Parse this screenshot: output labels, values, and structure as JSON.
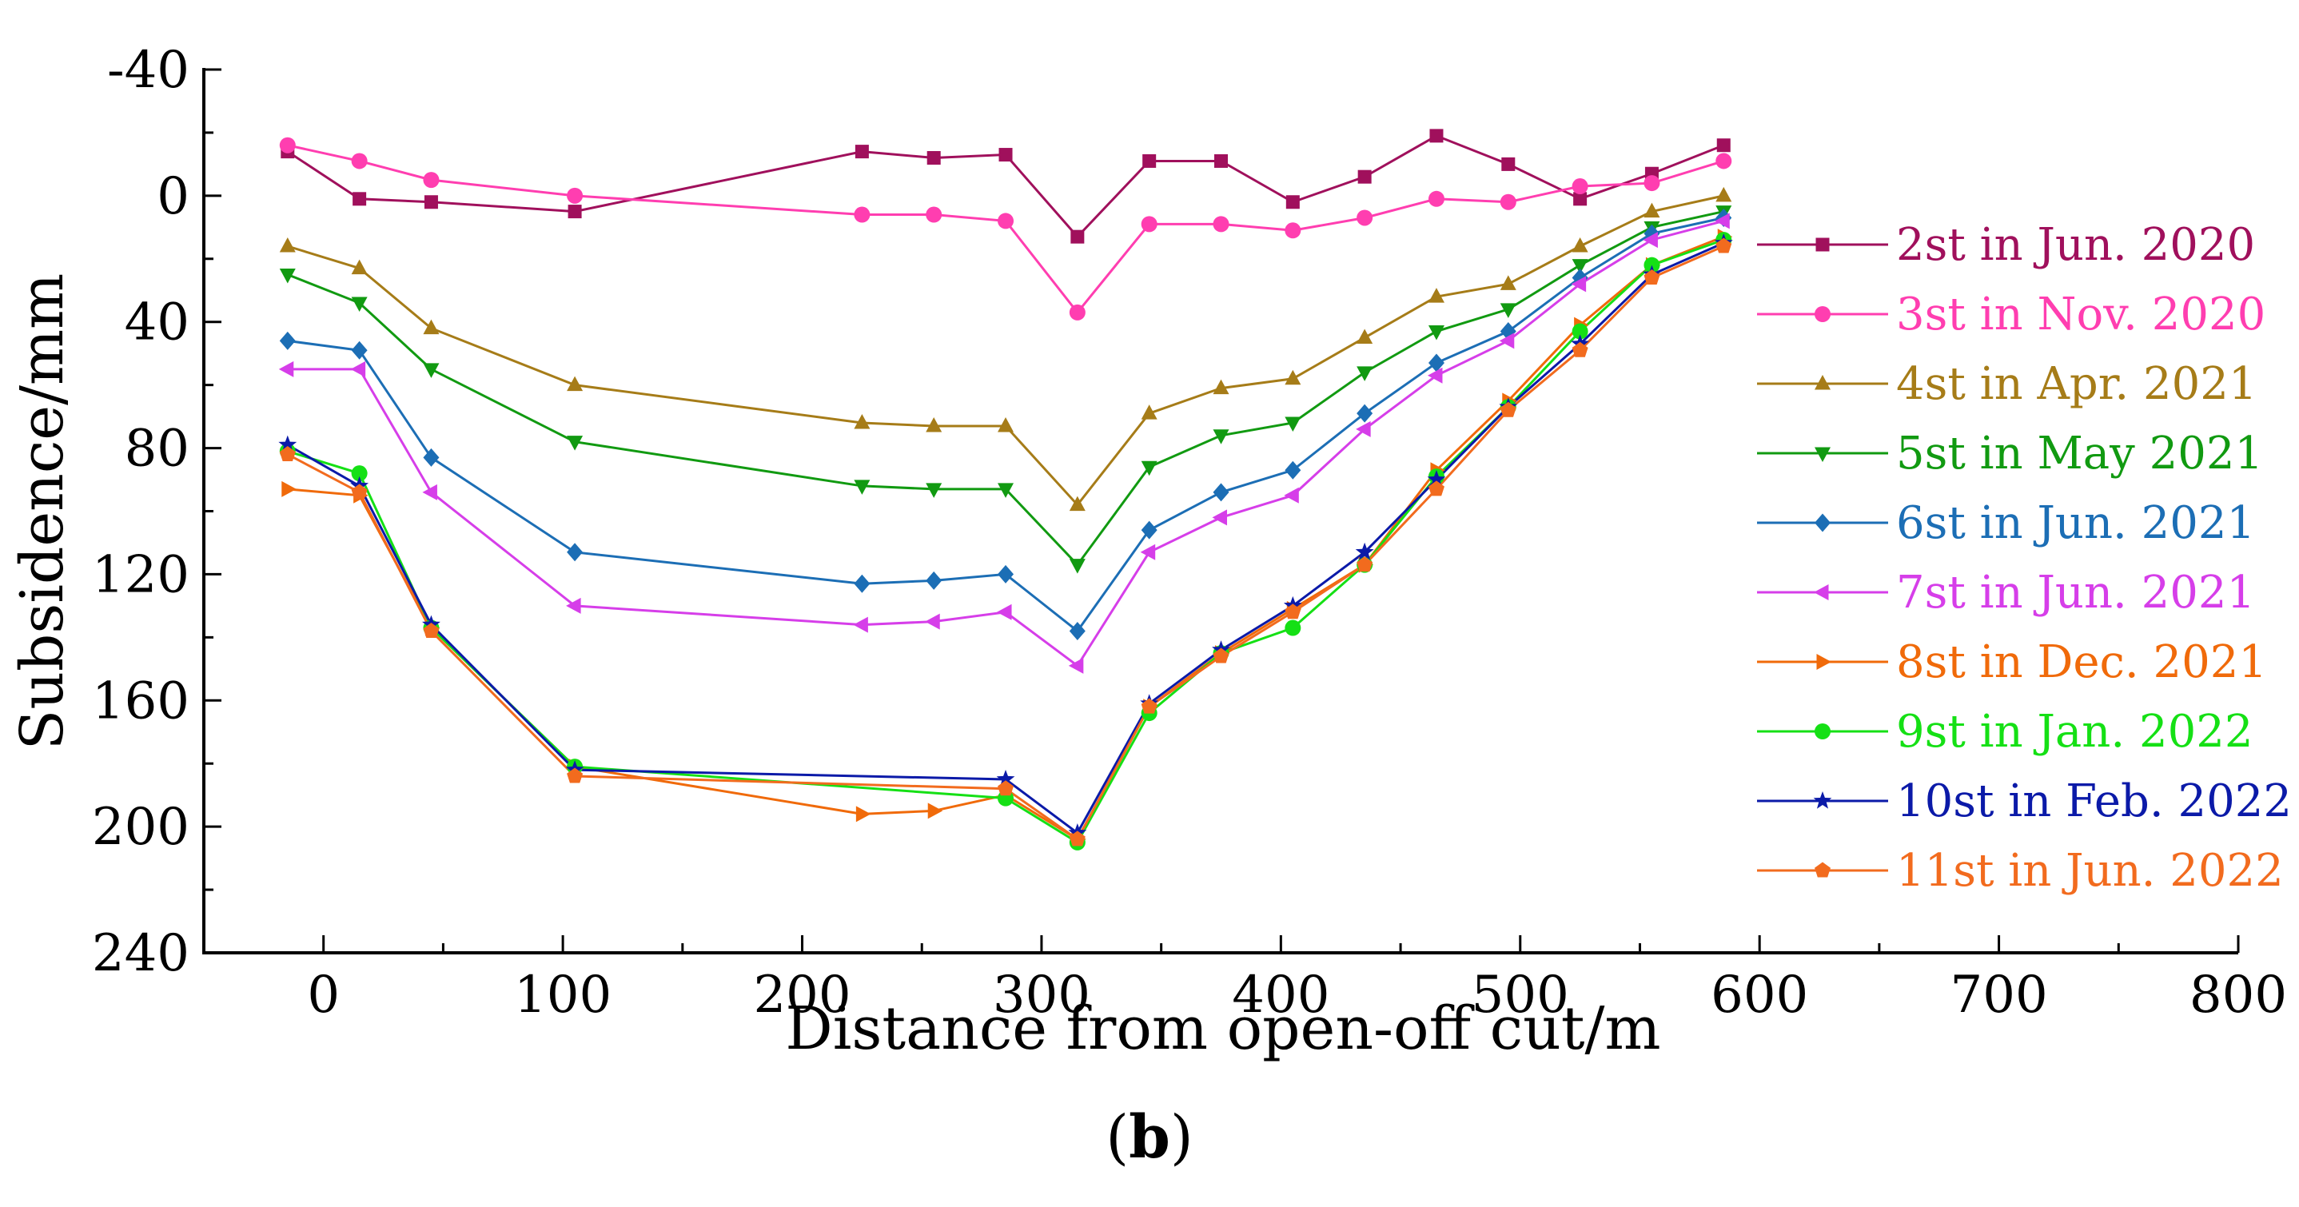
{
  "chart_data": {
    "type": "line",
    "xlabel": "Distance from open-off cut/m",
    "ylabel": "Subsidence/mm",
    "caption_letter": "b",
    "xlim": [
      -50,
      800
    ],
    "ylim": [
      -40,
      240
    ],
    "y_inverted": true,
    "xticks": [
      0,
      100,
      200,
      300,
      400,
      500,
      600,
      700,
      800
    ],
    "yticks": [
      -40,
      0,
      40,
      80,
      120,
      160,
      200,
      240
    ],
    "xtick_labels": [
      "0",
      "100",
      "200",
      "300",
      "400",
      "500",
      "600",
      "700",
      "800"
    ],
    "ytick_labels": [
      "-40",
      "0",
      "40",
      "80",
      "120",
      "160",
      "200",
      "240"
    ],
    "legend_position": "right",
    "series": [
      {
        "name": "2st in Jun. 2020",
        "color": "#a0105c",
        "marker": "square",
        "x": [
          -15,
          15,
          45,
          105,
          225,
          255,
          285,
          315,
          345,
          375,
          405,
          435,
          465,
          495,
          525,
          555,
          585
        ],
        "y": [
          -14,
          1,
          2,
          5,
          -14,
          -12,
          -13,
          13,
          -11,
          -11,
          2,
          -6,
          -19,
          -10,
          1,
          -7,
          -16
        ]
      },
      {
        "name": "3st in Nov. 2020",
        "color": "#ff3eb0",
        "marker": "circle",
        "x": [
          -15,
          15,
          45,
          105,
          225,
          255,
          285,
          315,
          345,
          375,
          405,
          435,
          465,
          495,
          525,
          555,
          585
        ],
        "y": [
          -16,
          -11,
          -5,
          0,
          6,
          6,
          8,
          37,
          9,
          9,
          11,
          7,
          1,
          2,
          -3,
          -4,
          -11
        ]
      },
      {
        "name": "4st in Apr. 2021",
        "color": "#a67c18",
        "marker": "triangle-up",
        "x": [
          -15,
          15,
          45,
          105,
          225,
          255,
          285,
          315,
          345,
          375,
          405,
          435,
          465,
          495,
          525,
          555,
          585
        ],
        "y": [
          16,
          23,
          42,
          60,
          72,
          73,
          73,
          98,
          69,
          61,
          58,
          45,
          32,
          28,
          16,
          5,
          0
        ]
      },
      {
        "name": "5st in May 2021",
        "color": "#119a11",
        "marker": "triangle-down",
        "x": [
          -15,
          15,
          45,
          105,
          225,
          255,
          285,
          315,
          345,
          375,
          405,
          435,
          465,
          495,
          525,
          555,
          585
        ],
        "y": [
          25,
          34,
          55,
          78,
          92,
          93,
          93,
          117,
          86,
          76,
          72,
          56,
          43,
          36,
          22,
          10,
          5
        ]
      },
      {
        "name": "6st in Jun. 2021",
        "color": "#1c6eb5",
        "marker": "diamond",
        "x": [
          -15,
          15,
          45,
          105,
          225,
          255,
          285,
          315,
          345,
          375,
          405,
          435,
          465,
          495,
          525,
          555,
          585
        ],
        "y": [
          46,
          49,
          83,
          113,
          123,
          122,
          120,
          138,
          106,
          94,
          87,
          69,
          53,
          43,
          26,
          12,
          7
        ]
      },
      {
        "name": "7st in Jun. 2021",
        "color": "#d63ee9",
        "marker": "triangle-left",
        "x": [
          -15,
          15,
          45,
          105,
          225,
          255,
          285,
          315,
          345,
          375,
          405,
          435,
          465,
          495,
          525,
          555,
          585
        ],
        "y": [
          55,
          55,
          94,
          130,
          136,
          135,
          132,
          149,
          113,
          102,
          95,
          74,
          57,
          46,
          28,
          14,
          8
        ]
      },
      {
        "name": "8st in Dec. 2021",
        "color": "#f06a0a",
        "marker": "triangle-right",
        "x": [
          -15,
          15,
          45,
          105,
          225,
          255,
          285,
          315,
          345,
          375,
          405,
          435,
          465,
          495,
          525,
          555,
          585
        ],
        "y": [
          93,
          95,
          137,
          181,
          196,
          195,
          190,
          204,
          162,
          145,
          131,
          117,
          87,
          65,
          41,
          22,
          13
        ]
      },
      {
        "name": "9st in Jan. 2022",
        "color": "#15e015",
        "marker": "circle",
        "x": [
          -15,
          15,
          45,
          105,
          285,
          315,
          345,
          375,
          405,
          435,
          465,
          495,
          525,
          555,
          585
        ],
        "y": [
          81,
          88,
          137,
          181,
          191,
          205,
          164,
          145,
          137,
          117,
          89,
          67,
          43,
          22,
          14
        ]
      },
      {
        "name": "10st in Feb. 2022",
        "color": "#0b1aa8",
        "marker": "star",
        "x": [
          -15,
          15,
          45,
          105,
          285,
          315,
          345,
          375,
          405,
          435,
          465,
          495,
          525,
          555,
          585
        ],
        "y": [
          79,
          92,
          136,
          182,
          185,
          202,
          161,
          144,
          130,
          113,
          90,
          67,
          47,
          25,
          15
        ]
      },
      {
        "name": "11st in Jun. 2022",
        "color": "#f26b1e",
        "marker": "pentagon",
        "x": [
          -15,
          15,
          45,
          105,
          285,
          315,
          345,
          375,
          405,
          435,
          465,
          495,
          525,
          555,
          585
        ],
        "y": [
          82,
          94,
          138,
          184,
          188,
          204,
          162,
          146,
          132,
          117,
          93,
          68,
          49,
          26,
          16
        ]
      }
    ]
  }
}
